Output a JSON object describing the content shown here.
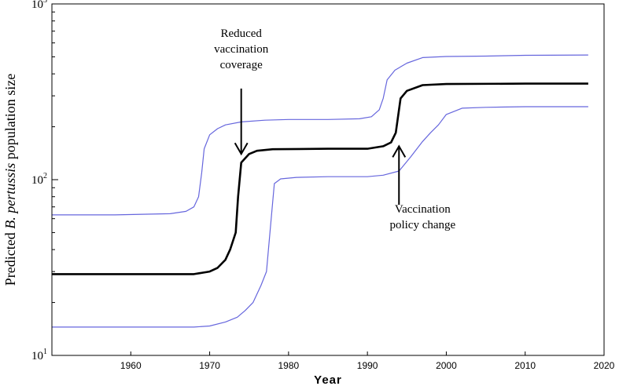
{
  "chart_data": {
    "type": "line",
    "xlabel": "Year",
    "ylabel": {
      "prefix": "Predicted ",
      "italic": "B. pertussis",
      "suffix": " population size"
    },
    "xlim": [
      1950,
      2020
    ],
    "ylim": [
      10,
      1000
    ],
    "yscale": "log",
    "x_ticks": [
      1960,
      1970,
      1980,
      1990,
      2000,
      2010,
      2020
    ],
    "y_ticks": [
      {
        "base": "10",
        "exp": "1"
      },
      {
        "base": "10",
        "exp": "2"
      },
      {
        "base": "10",
        "exp": "3"
      }
    ],
    "grid": false,
    "colors": {
      "median": "#000000",
      "bounds": "#6666dd"
    },
    "series": [
      {
        "role": "upper",
        "color": "#6666dd",
        "points": [
          [
            1950,
            63
          ],
          [
            1958,
            63
          ],
          [
            1965,
            64
          ],
          [
            1967,
            66
          ],
          [
            1968,
            70
          ],
          [
            1968.6,
            80
          ],
          [
            1969,
            110
          ],
          [
            1969.3,
            150
          ],
          [
            1970,
            180
          ],
          [
            1971,
            195
          ],
          [
            1972,
            205
          ],
          [
            1974,
            213
          ],
          [
            1977,
            218
          ],
          [
            1980,
            220
          ],
          [
            1985,
            220
          ],
          [
            1989,
            222
          ],
          [
            1990.5,
            228
          ],
          [
            1991.5,
            250
          ],
          [
            1992,
            290
          ],
          [
            1992.5,
            370
          ],
          [
            1993.5,
            420
          ],
          [
            1995,
            460
          ],
          [
            1997,
            495
          ],
          [
            2000,
            502
          ],
          [
            2005,
            505
          ],
          [
            2010,
            510
          ],
          [
            2018,
            512
          ]
        ]
      },
      {
        "role": "median",
        "color": "#000000",
        "points": [
          [
            1950,
            29
          ],
          [
            1960,
            29
          ],
          [
            1968,
            29
          ],
          [
            1970,
            30
          ],
          [
            1971,
            31.5
          ],
          [
            1972,
            35
          ],
          [
            1972.6,
            40
          ],
          [
            1973.3,
            50
          ],
          [
            1973.6,
            80
          ],
          [
            1974,
            125
          ],
          [
            1975,
            140
          ],
          [
            1976,
            146
          ],
          [
            1978,
            149
          ],
          [
            1985,
            150
          ],
          [
            1990,
            150
          ],
          [
            1992,
            155
          ],
          [
            1993,
            163
          ],
          [
            1993.6,
            185
          ],
          [
            1994.2,
            290
          ],
          [
            1995,
            320
          ],
          [
            1997,
            345
          ],
          [
            2000,
            350
          ],
          [
            2010,
            352
          ],
          [
            2018,
            352
          ]
        ]
      },
      {
        "role": "lower",
        "color": "#6666dd",
        "points": [
          [
            1950,
            14.5
          ],
          [
            1960,
            14.5
          ],
          [
            1968,
            14.5
          ],
          [
            1970,
            14.7
          ],
          [
            1972,
            15.5
          ],
          [
            1973.5,
            16.5
          ],
          [
            1974.5,
            18
          ],
          [
            1975.5,
            20
          ],
          [
            1976.5,
            25
          ],
          [
            1977.2,
            30
          ],
          [
            1977.8,
            60
          ],
          [
            1978.2,
            95
          ],
          [
            1979,
            101
          ],
          [
            1981,
            103
          ],
          [
            1985,
            104
          ],
          [
            1990,
            104
          ],
          [
            1992,
            106
          ],
          [
            1994,
            112
          ],
          [
            1995.5,
            135
          ],
          [
            1997,
            165
          ],
          [
            1998,
            185
          ],
          [
            1999,
            205
          ],
          [
            2000,
            235
          ],
          [
            2002,
            255
          ],
          [
            2005,
            258
          ],
          [
            2010,
            260
          ],
          [
            2018,
            260
          ]
        ]
      }
    ],
    "annotations": [
      {
        "lines": [
          "Reduced",
          "vaccination",
          "coverage"
        ],
        "arrow_from": [
          1974,
          330
        ],
        "arrow_to": [
          1974,
          140
        ],
        "text_anchor": [
          1974,
          650
        ]
      },
      {
        "lines": [
          "Vaccination",
          "policy change"
        ],
        "arrow_from": [
          1994,
          72
        ],
        "arrow_to": [
          1994,
          155
        ],
        "text_anchor": [
          1997,
          65
        ]
      }
    ]
  }
}
